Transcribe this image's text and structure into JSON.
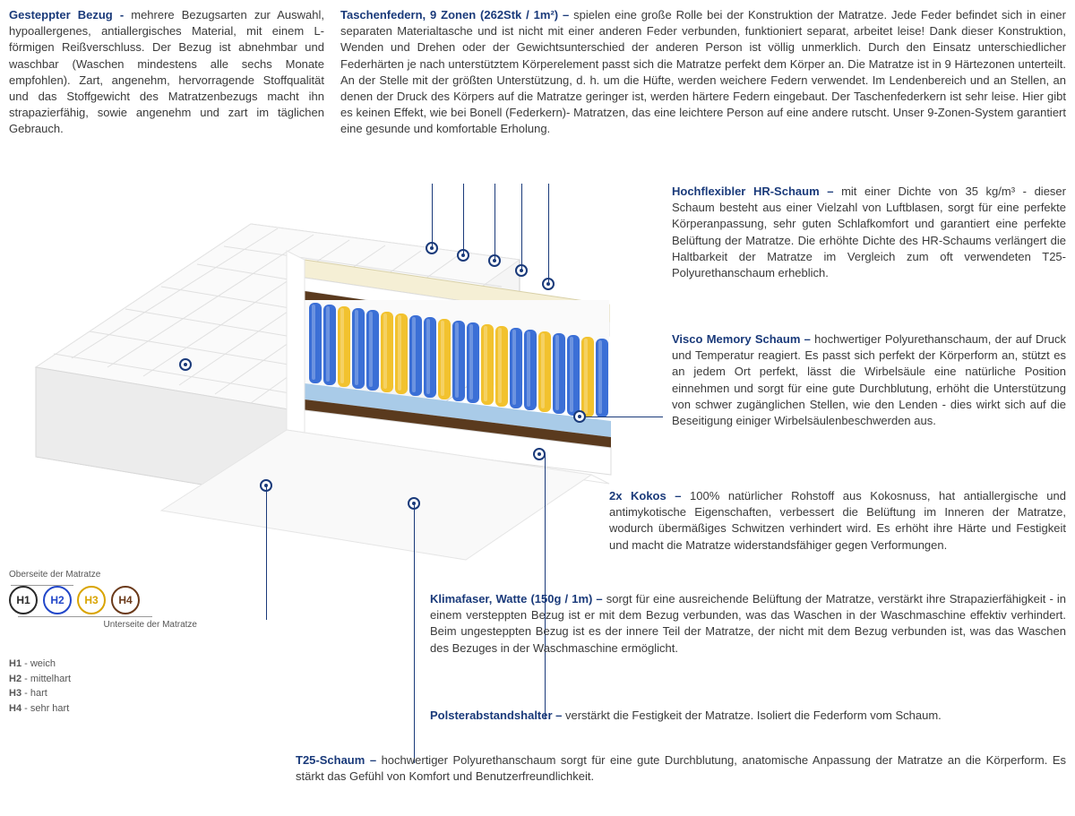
{
  "colors": {
    "heading": "#1a3a7a",
    "text": "#3a3a3a",
    "spring_blue": "#3b6fd6",
    "spring_yellow": "#f2c22e",
    "foam_cream": "#f5efd5",
    "foam_blue": "#a9cbe8",
    "cocos": "#5a3a1e",
    "cover": "#f0f0f0"
  },
  "top": {
    "left": {
      "title": "Gesteppter Bezug - ",
      "body": "mehrere Bezugsarten zur Auswahl, hypoallergenes, antiallergisches Material, mit einem L-förmigen Reißverschluss. Der Bezug ist abnehmbar und waschbar (Waschen mindestens alle sechs Monate empfohlen). Zart, angenehm, hervorragende Stoffqualität und das Stoffgewicht des Matratzenbezugs macht ihn strapazierfähig, sowie angenehm und zart im täglichen Gebrauch."
    },
    "right": {
      "title": "Taschenfedern, 9 Zonen (262Stk / 1m²) – ",
      "body": "spielen eine große Rolle bei der Konstruktion der Matratze. Jede Feder befindet sich in einer separaten Materialtasche und ist nicht mit einer anderen Feder verbunden, funktioniert separat, arbeitet leise! Dank dieser Konstruktion, Wenden und Drehen oder der Gewichtsunterschied der anderen Person ist völlig unmerklich. Durch den Einsatz unterschiedlicher Federhärten je nach unterstütztem Körperelement passt sich die Matratze perfekt dem Körper an. Die Matratze ist in 9 Härtezonen unterteilt. An der Stelle mit der größten Unterstützung, d. h. um die Hüfte, werden weichere Federn verwendet. Im Lendenbereich und an Stellen, an denen der Druck des Körpers auf die Matratze geringer ist, werden härtere Federn eingebaut. Der Taschenfederkern ist sehr leise. Hier gibt es keinen Effekt, wie bei Bonell (Federkern)- Matratzen, das eine leichtere Person auf eine andere rutscht. Unser 9-Zonen-System garantiert eine gesunde und komfortable Erholung."
    }
  },
  "callouts": {
    "hr": {
      "title": "Hochflexibler HR-Schaum – ",
      "body": "mit einer Dichte von 35 kg/m³ - dieser Schaum besteht aus einer Vielzahl von Luftblasen, sorgt für eine perfekte Körperanpassung, sehr guten Schlafkomfort und garantiert eine perfekte Belüftung der Matratze. Die erhöhte Dichte des HR-Schaums verlängert die Haltbarkeit der Matratze im Vergleich zum oft verwendeten T25-Polyurethanschaum erheblich."
    },
    "visco": {
      "title": "Visco Memory Schaum – ",
      "body": "hochwertiger Polyurethanschaum, der auf Druck und Temperatur reagiert. Es passt sich perfekt der Körperform an, stützt es an jedem Ort perfekt, lässt die Wirbelsäule eine natürliche Position einnehmen und sorgt für eine gute Durchblutung, erhöht die Unterstützung von schwer zugänglichen Stellen, wie den Lenden - dies wirkt sich auf die Beseitigung einiger Wirbelsäulenbeschwerden aus."
    },
    "kokos": {
      "title": "2x Kokos – ",
      "body": "100% natürlicher Rohstoff aus Kokosnuss, hat antiallergische und antimykotische Eigenschaften, verbessert die Belüftung im Inneren der Matratze, wodurch übermäßiges Schwitzen verhindert wird. Es erhöht ihre Härte und Festigkeit und macht die Matratze widerstandsfähiger gegen Verformungen."
    },
    "klima": {
      "title": "Klimafaser, Watte (150g / 1m) – ",
      "body": "sorgt für eine ausreichende Belüftung der Matratze, verstärkt ihre Strapazierfähigkeit - in einem versteppten Bezug ist er mit dem Bezug verbunden, was das Waschen in der Waschmaschine effektiv verhindert. Beim ungesteppten Bezug ist es der innere Teil der Matratze, der nicht mit dem Bezug verbunden ist, was das Waschen des Bezuges in der Waschmaschine ermöglicht."
    },
    "polster": {
      "title": "Polsterabstandshalter – ",
      "body": "verstärkt die Festigkeit der Matratze. Isoliert die Federform vom Schaum."
    },
    "t25": {
      "title": "T25-Schaum – ",
      "body": "hochwertiger Polyurethanschaum sorgt für eine gute Durchblutung, anatomische Anpassung der Matratze an die Körperform. Es stärkt das Gefühl von Komfort und Benutzerfreundlichkeit."
    }
  },
  "hardness": {
    "topLabel": "Oberseite der Matratze",
    "botLabel": "Unterseite der Matratze",
    "items": [
      {
        "code": "H1",
        "label": "weich",
        "color": "#2a2a2a"
      },
      {
        "code": "H2",
        "label": "mittelhart",
        "color": "#2247c9"
      },
      {
        "code": "H3",
        "label": "hart",
        "color": "#d9a400"
      },
      {
        "code": "H4",
        "label": "sehr hart",
        "color": "#6b3a1a"
      }
    ]
  }
}
